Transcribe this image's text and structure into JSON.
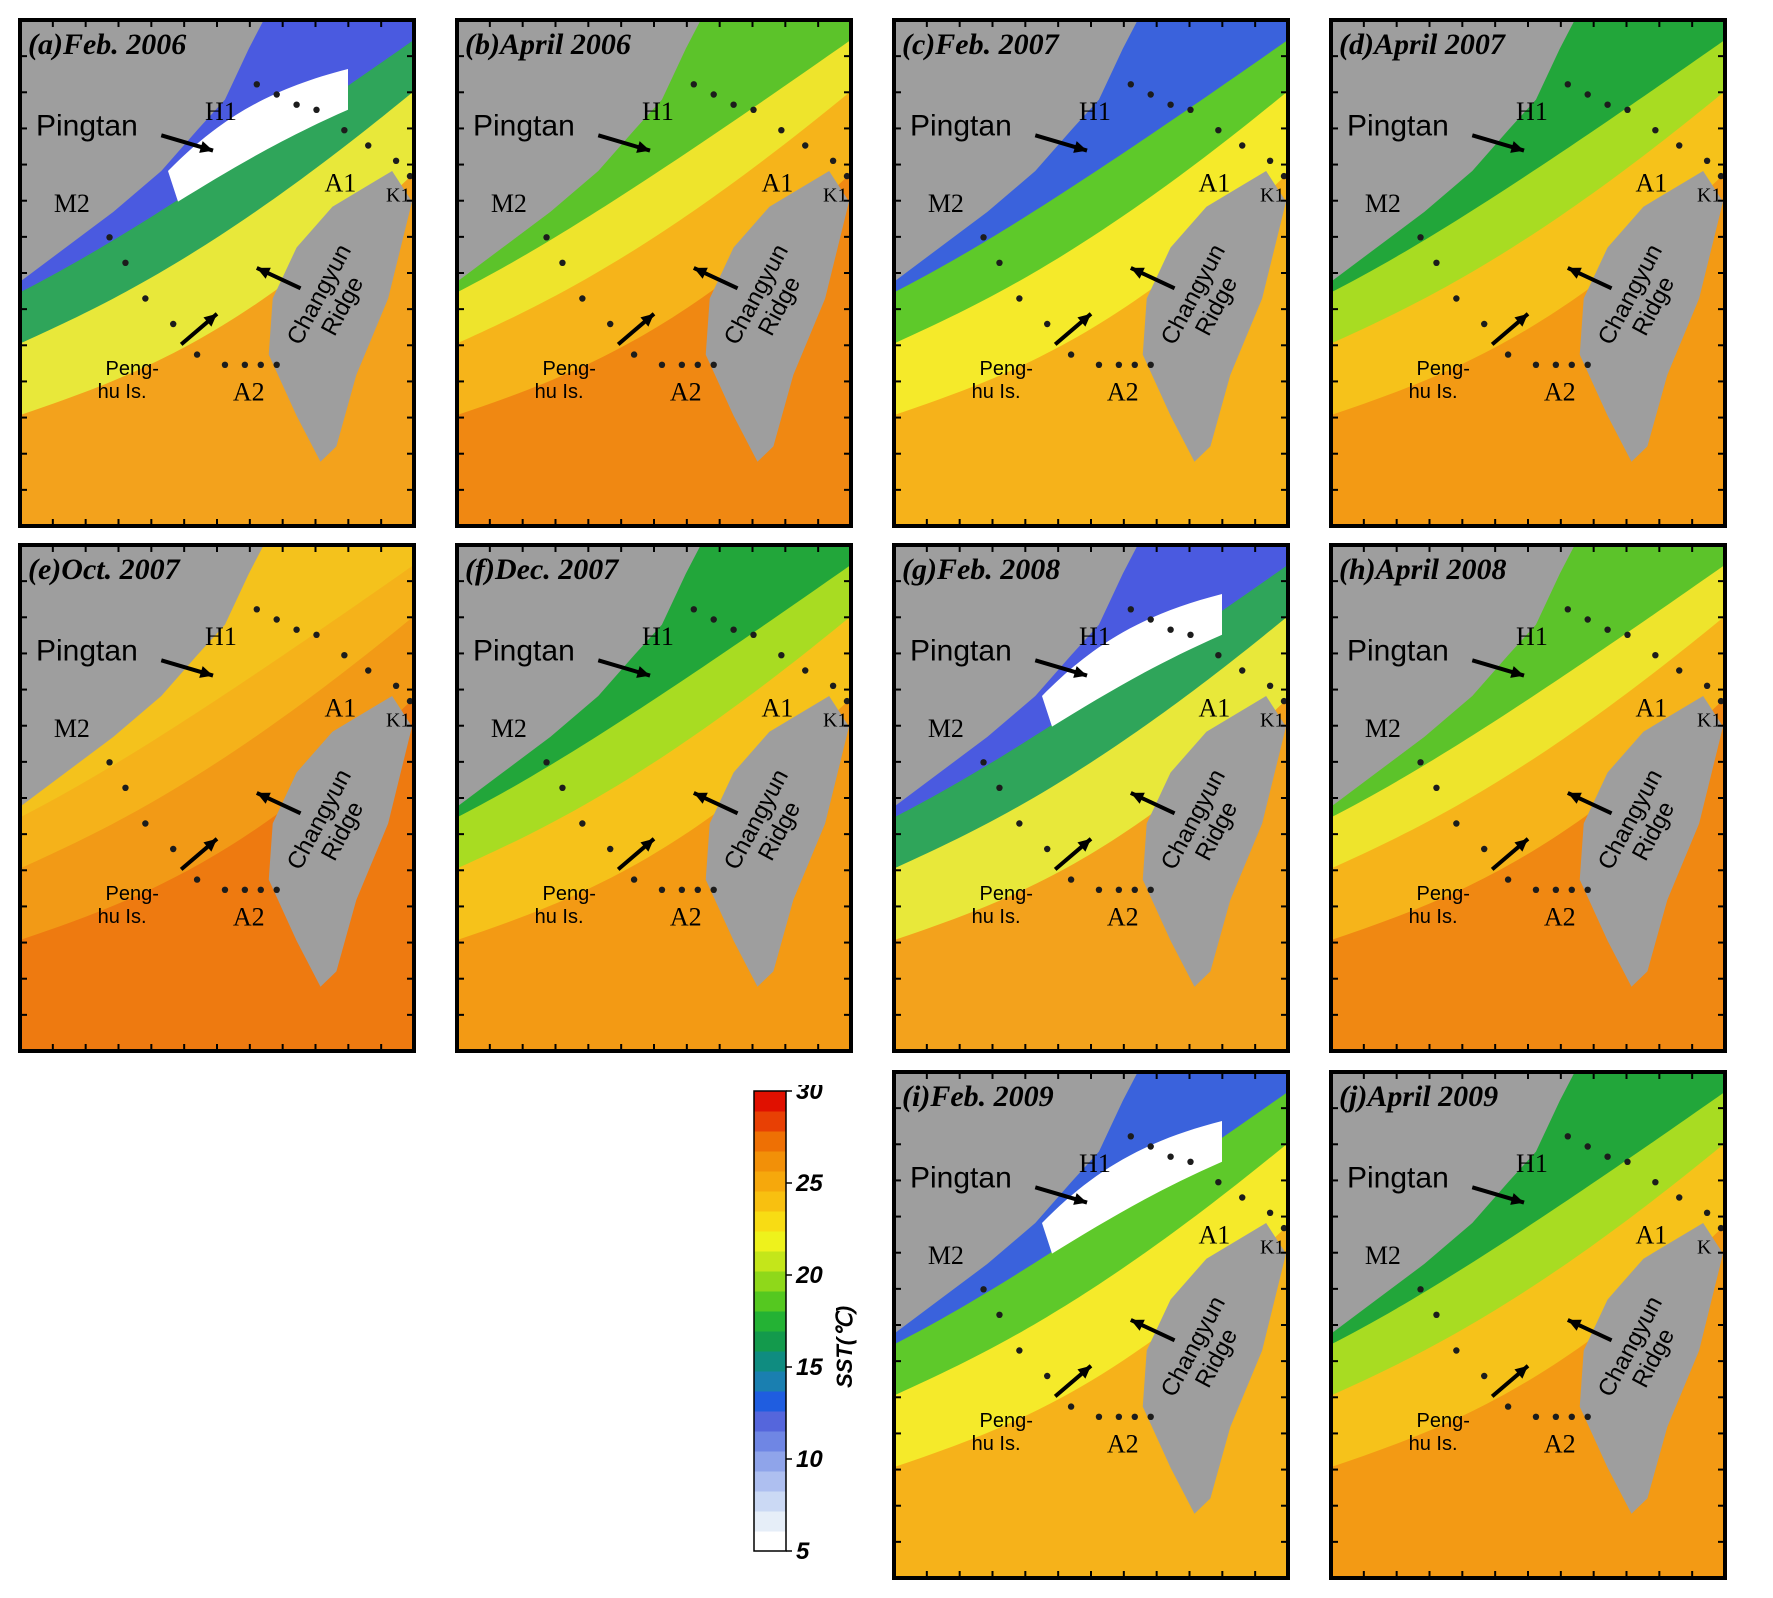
{
  "panels": [
    {
      "id": "a",
      "title": "(a)Feb. 2006",
      "palette": "cold",
      "white_zone": true,
      "k_label": "K1"
    },
    {
      "id": "b",
      "title": "(b)April 2006",
      "palette": "warm",
      "white_zone": false,
      "k_label": "K1"
    },
    {
      "id": "c",
      "title": "(c)Feb. 2007",
      "palette": "cool",
      "white_zone": false,
      "k_label": "K1"
    },
    {
      "id": "d",
      "title": "(d)April 2007",
      "palette": "mild",
      "white_zone": false,
      "k_label": "K1"
    },
    {
      "id": "e",
      "title": "(e)Oct. 2007",
      "palette": "hot",
      "white_zone": false,
      "k_label": "K1"
    },
    {
      "id": "f",
      "title": "(f)Dec. 2007",
      "palette": "mild",
      "white_zone": false,
      "k_label": "K1"
    },
    {
      "id": "g",
      "title": "(g)Feb. 2008",
      "palette": "cold",
      "white_zone": true,
      "k_label": "K1"
    },
    {
      "id": "h",
      "title": "(h)April 2008",
      "palette": "warm",
      "white_zone": false,
      "k_label": "K1"
    },
    {
      "id": "i",
      "title": "(i)Feb. 2009",
      "palette": "cool",
      "white_zone": true,
      "k_label": "K1"
    },
    {
      "id": "j",
      "title": "(j)April 2009",
      "palette": "mild",
      "white_zone": false,
      "k_label": "K"
    }
  ],
  "labels": {
    "pingtan": "Pingtan",
    "h1": "H1",
    "m2": "M2",
    "a1": "A1",
    "a2": "A2",
    "penghu_line1": "Peng-",
    "penghu_line2": "hu Is.",
    "ridge_line1": "Changyun",
    "ridge_line2": "Ridge"
  },
  "colorbar": {
    "title": "SST(℃)",
    "ticks": [
      "30",
      "25",
      "20",
      "15",
      "10",
      "5"
    ],
    "colors": [
      "#ffffff",
      "#e6eef8",
      "#cbd9f4",
      "#aebff0",
      "#8fa4ea",
      "#6f86e4",
      "#5566dc",
      "#1f5de0",
      "#1a7fb0",
      "#0f8c80",
      "#139a4c",
      "#24b234",
      "#55c820",
      "#8fd81a",
      "#c4e61a",
      "#eef21c",
      "#f8dc14",
      "#f8c010",
      "#f6a80c",
      "#f29008",
      "#ee7004",
      "#e84004",
      "#e01000"
    ]
  },
  "palettes": {
    "cold": {
      "coast": "#4a5ae0",
      "mid": "#2fa55a",
      "south": "#e8e83a",
      "far": "#f3a21c",
      "white": "#ffffff"
    },
    "cool": {
      "coast": "#3a62dc",
      "mid": "#5ec92a",
      "south": "#f5ea2a",
      "far": "#f6b21a",
      "white": "#ffffff"
    },
    "mild": {
      "coast": "#22a63a",
      "mid": "#a8dc22",
      "south": "#f6c21a",
      "far": "#f39a14",
      "white": "#ffffff"
    },
    "warm": {
      "coast": "#5cc32a",
      "mid": "#eee42c",
      "south": "#f6b41a",
      "far": "#f08812",
      "white": "#ffffff"
    },
    "hot": {
      "coast": "#f4c21c",
      "mid": "#f5b21a",
      "south": "#f29a16",
      "far": "#ee7a10",
      "white": "#ffffff"
    }
  }
}
